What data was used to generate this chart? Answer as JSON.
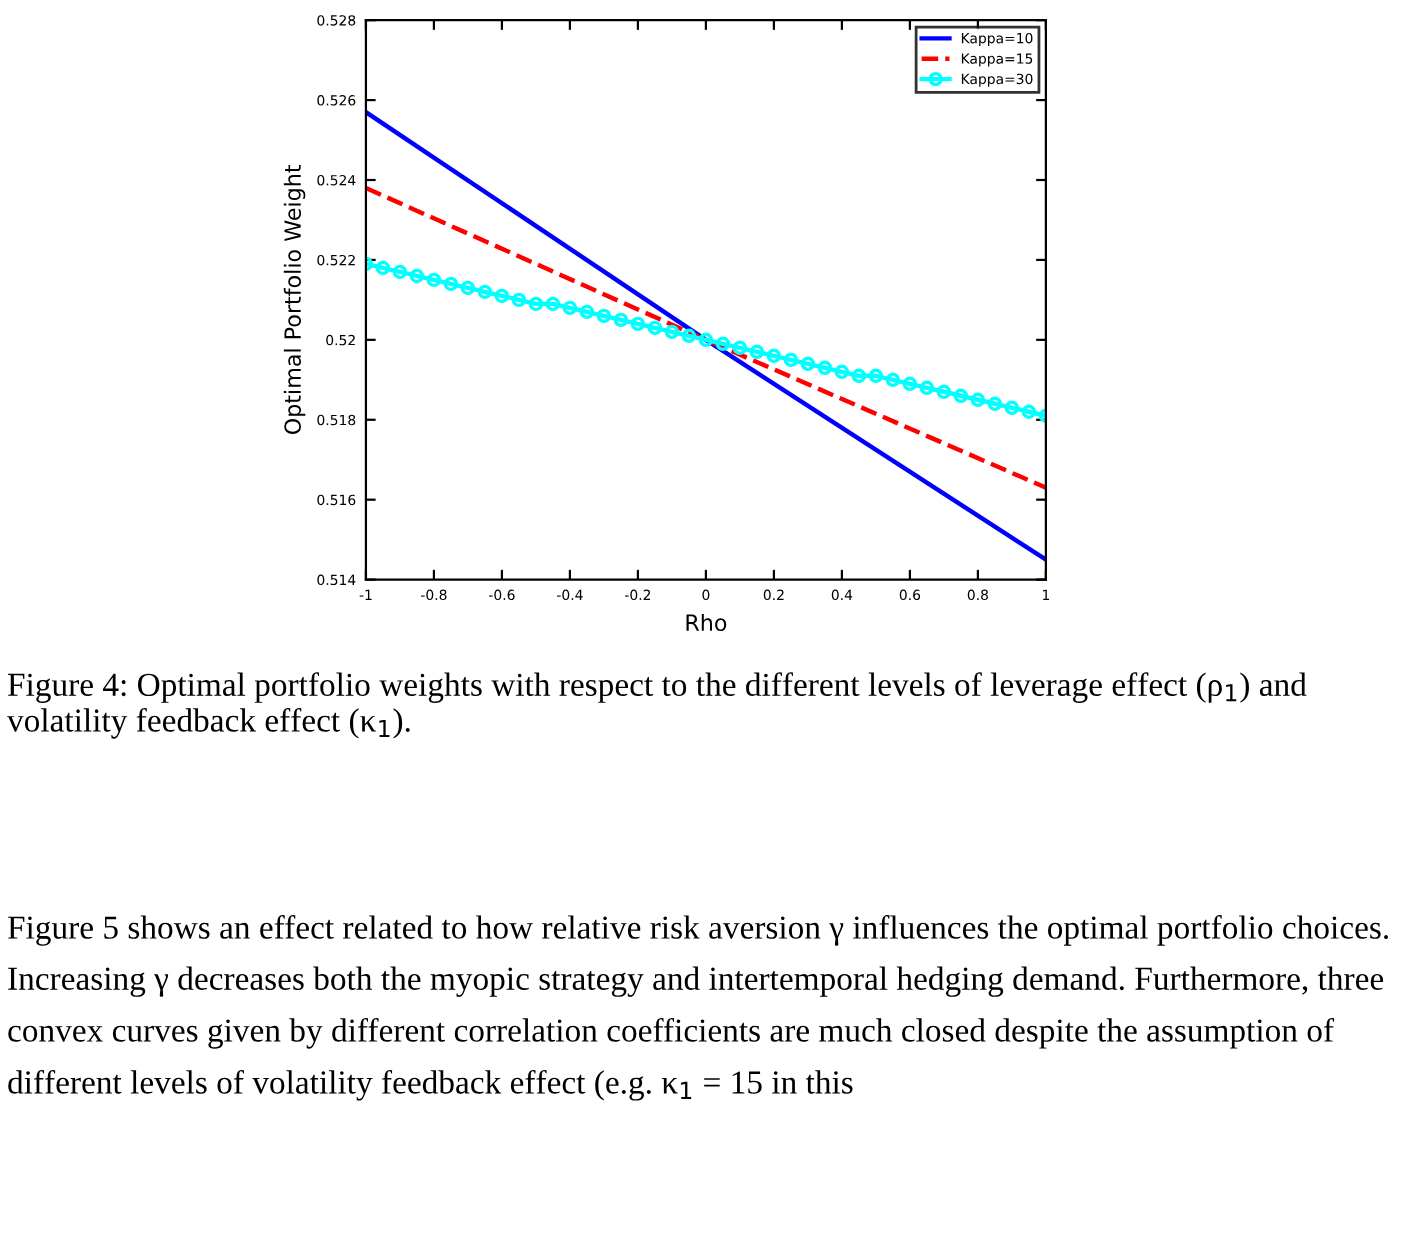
{
  "chart_data": {
    "type": "line",
    "xlabel": "Rho",
    "ylabel": "Optimal Portfolio Weight",
    "xlim": [
      -1,
      1
    ],
    "ylim": [
      0.514,
      0.528
    ],
    "xticks": [
      -1,
      -0.8,
      -0.6,
      -0.4,
      -0.2,
      0,
      0.2,
      0.4,
      0.6,
      0.8,
      1
    ],
    "yticks": [
      0.514,
      0.516,
      0.518,
      0.52,
      0.522,
      0.524,
      0.526,
      0.528
    ],
    "grid": false,
    "legend": "top right",
    "annotations": [
      "Figure 4: Optimal portfolio weights with respect to the different levels of leverage effect (ρ$_{1}$) and volatility feedback effect (κ$_{1}$).",
      "Figure 5 shows an effect related to how relative risk aversion γ influences the optimal portfolio choices. Increasing γ decreases both the myopic strategy and intertemporal hedging demand. Furthermore, three convex curves given by different correlation coefficients are much closed despite the assumption of different levels of volatility feedback effect (e.g. κ$_{1}$ = 15 in this"
    ],
    "series": [
      {
        "name": "Kappa=10",
        "color": "#0000ff",
        "line_style": "solid",
        "marker": "none",
        "x": [
          -1,
          0,
          1
        ],
        "values": [
          0.5257,
          0.52,
          0.5145
        ]
      },
      {
        "name": "Kappa=15",
        "color": "#ff0000",
        "line_style": "dashed",
        "marker": "none",
        "x": [
          -1,
          0,
          1
        ],
        "values": [
          0.5238,
          0.52,
          0.5163
        ]
      },
      {
        "name": "Kappa=30",
        "color": "#00ffff",
        "line_style": "solid",
        "marker": "circle",
        "x": [
          -1,
          -0.95,
          -0.9,
          -0.85,
          -0.8,
          -0.75,
          -0.7,
          -0.65,
          -0.6,
          -0.55,
          -0.5,
          -0.45,
          -0.4,
          -0.35,
          -0.3,
          -0.25,
          -0.2,
          -0.15,
          -0.1,
          -0.05,
          0,
          0.05,
          0.1,
          0.15,
          0.2,
          0.25,
          0.3,
          0.35,
          0.4,
          0.45,
          0.5,
          0.55,
          0.6,
          0.65,
          0.7,
          0.75,
          0.8,
          0.85,
          0.9,
          0.95,
          1
        ],
        "values": [
          0.5219,
          0.5218,
          0.5217,
          0.5216,
          0.5215,
          0.5214,
          0.5213,
          0.5212,
          0.5211,
          0.521,
          0.5209,
          0.5209,
          0.5208,
          0.5207,
          0.5206,
          0.5205,
          0.5204,
          0.5203,
          0.5202,
          0.5201,
          0.52,
          0.5199,
          0.5198,
          0.5197,
          0.5196,
          0.5195,
          0.5194,
          0.5193,
          0.5192,
          0.5191,
          0.5191,
          0.519,
          0.5189,
          0.5188,
          0.5187,
          0.5186,
          0.5185,
          0.5184,
          0.5183,
          0.5182,
          0.5181
        ]
      }
    ]
  }
}
